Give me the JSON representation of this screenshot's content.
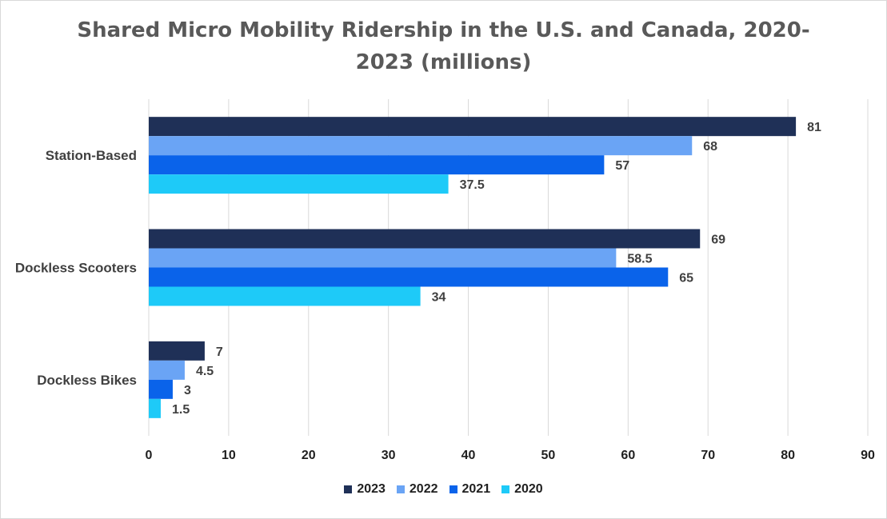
{
  "chart_data": {
    "type": "bar",
    "orientation": "horizontal",
    "title": "Shared Micro Mobility Ridership in the U.S. and Canada, 2020-2023 (millions)",
    "title_lines": [
      "Shared Micro Mobility Ridership in the U.S. and Canada, 2020-",
      "2023 (millions)"
    ],
    "categories": [
      "Station-Based",
      "Dockless Scooters",
      "Dockless Bikes"
    ],
    "series": [
      {
        "name": "2023",
        "color": "#1f3057",
        "values": [
          81,
          69,
          7
        ],
        "labels": [
          "81",
          "69",
          "7"
        ]
      },
      {
        "name": "2022",
        "color": "#6aa4f5",
        "values": [
          68,
          58.5,
          4.5
        ],
        "labels": [
          "68",
          "58.5",
          "4.5"
        ]
      },
      {
        "name": "2021",
        "color": "#0a63ea",
        "values": [
          57,
          65,
          3
        ],
        "labels": [
          "57",
          "65",
          "3"
        ]
      },
      {
        "name": "2020",
        "color": "#1ecaf8",
        "values": [
          37.5,
          34,
          1.5
        ],
        "labels": [
          "37.5",
          "34",
          "1.5"
        ]
      }
    ],
    "xlim": [
      0,
      90
    ],
    "xticks": [
      0,
      10,
      20,
      30,
      40,
      50,
      60,
      70,
      80,
      90
    ],
    "xlabel": "",
    "ylabel": "",
    "grid": true,
    "legend_position": "bottom"
  }
}
